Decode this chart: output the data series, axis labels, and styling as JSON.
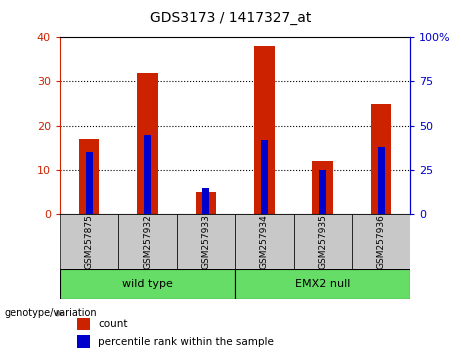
{
  "title": "GDS3173 / 1417327_at",
  "categories": [
    "GSM257875",
    "GSM257932",
    "GSM257933",
    "GSM257934",
    "GSM257935",
    "GSM257936"
  ],
  "count_values": [
    17,
    32,
    5,
    38,
    12,
    25
  ],
  "percentile_values": [
    35,
    45,
    15,
    42,
    25,
    38
  ],
  "left_ylim": [
    0,
    40
  ],
  "right_ylim": [
    0,
    100
  ],
  "left_yticks": [
    0,
    10,
    20,
    30,
    40
  ],
  "right_yticks": [
    0,
    25,
    50,
    75,
    100
  ],
  "left_yticklabels": [
    "0",
    "10",
    "20",
    "30",
    "40"
  ],
  "right_yticklabels": [
    "0",
    "25",
    "50",
    "75",
    "100%"
  ],
  "bar_color_red": "#cc2200",
  "bar_color_blue": "#0000cc",
  "left_axis_color": "#cc2200",
  "right_axis_color": "#0000cc",
  "wildtype_label": "wild type",
  "emx2null_label": "EMX2 null",
  "genotype_label": "genotype/variation",
  "legend_count": "count",
  "legend_percentile": "percentile rank within the sample",
  "bar_width": 0.35,
  "pct_bar_width": 0.12,
  "tick_label_bg": "#c8c8c8",
  "group_color": "#66dd66",
  "title_fontsize": 10,
  "axis_fontsize": 8,
  "label_fontsize": 7,
  "legend_fontsize": 7.5
}
